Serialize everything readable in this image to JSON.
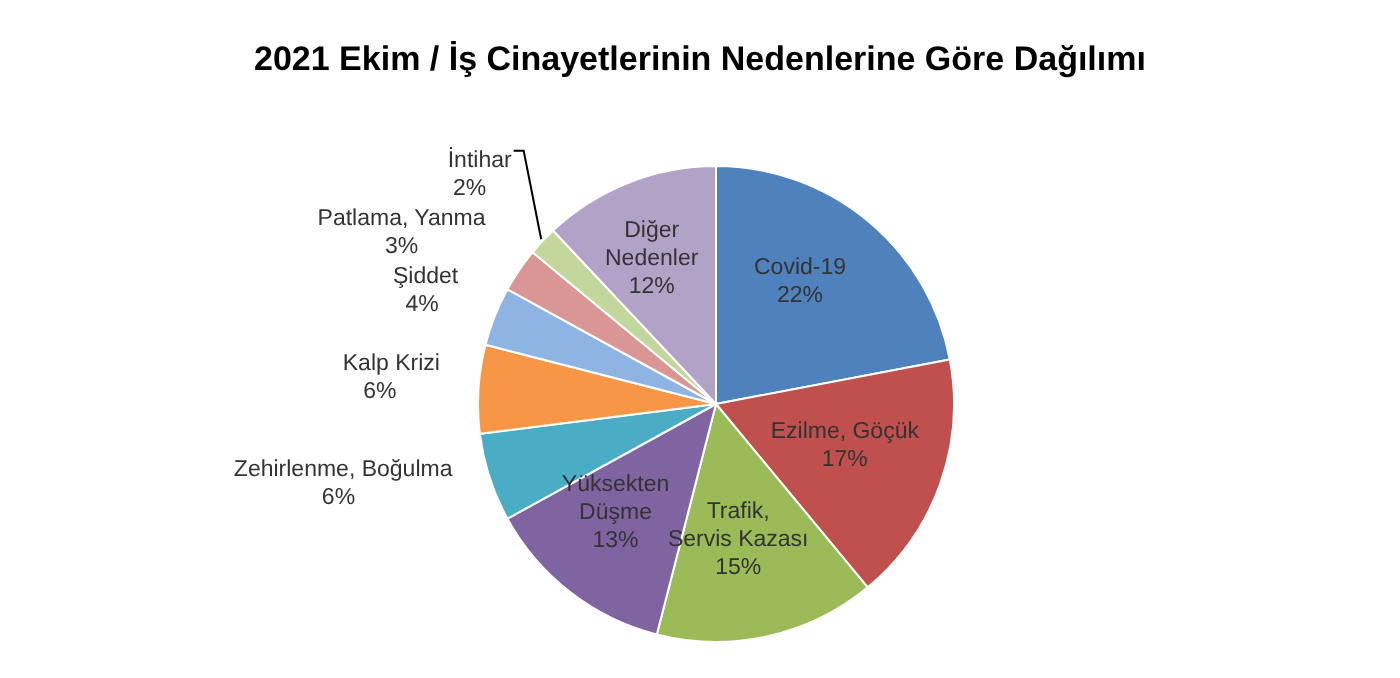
{
  "chart_data": {
    "type": "pie",
    "title": "2021 Ekim / İş Cinayetlerinin Nedenlerine Göre Dağılımı",
    "categories": [
      "Covid-19",
      "Ezilme, Göçük",
      "Trafik, Servis Kazası",
      "Yüksekten Düşme",
      "Zehirlenme, Boğulma",
      "Kalp Krizi",
      "Şiddet",
      "Patlama, Yanma",
      "İntihar",
      "Diğer Nedenler"
    ],
    "values": [
      22,
      17,
      15,
      13,
      6,
      6,
      4,
      3,
      2,
      12
    ],
    "value_labels": [
      "22%",
      "17%",
      "15%",
      "13%",
      "6%",
      "6%",
      "4%",
      "3%",
      "2%",
      "12%"
    ],
    "colors": [
      "#4f81bd",
      "#c0504d",
      "#9bbb59",
      "#8064a2",
      "#4bacc6",
      "#f79646",
      "#8eb4e3",
      "#d99694",
      "#c3d69b",
      "#b3a2c7"
    ],
    "data_labels": true,
    "legend": false
  }
}
